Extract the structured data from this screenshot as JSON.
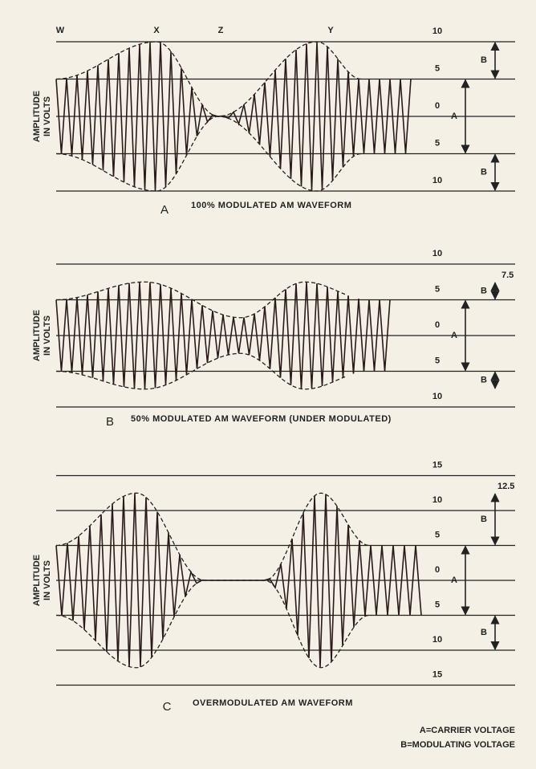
{
  "panels": [
    {
      "letter": "A",
      "caption": "100% MODULATED AM WAVEFORM",
      "axis_label": [
        "AMPLITUDE",
        "IN VOLTS"
      ],
      "points": [
        "W",
        "X",
        "Z",
        "Y"
      ],
      "scale": [
        "10",
        "5",
        "0",
        "5",
        "10"
      ],
      "arrows": [
        "B",
        "A",
        "B"
      ]
    },
    {
      "letter": "B",
      "caption": "50% MODULATED AM WAVEFORM (UNDER MODULATED)",
      "axis_label": [
        "AMPLITUDE",
        "IN VOLTS"
      ],
      "scale": [
        "10",
        "5",
        "0",
        "5",
        "10"
      ],
      "peak_label": "7.5",
      "arrows": [
        "B",
        "A",
        "B"
      ]
    },
    {
      "letter": "C",
      "caption": "OVERMODULATED AM WAVEFORM",
      "axis_label": [
        "AMPLITUDE",
        "IN VOLTS"
      ],
      "scale": [
        "15",
        "10",
        "5",
        "0",
        "5",
        "10",
        "15"
      ],
      "peak_label": "12.5",
      "arrows": [
        "B",
        "A",
        "B"
      ]
    }
  ],
  "legend": [
    "A=CARRIER VOLTAGE",
    "B=MODULATING VOLTAGE"
  ]
}
